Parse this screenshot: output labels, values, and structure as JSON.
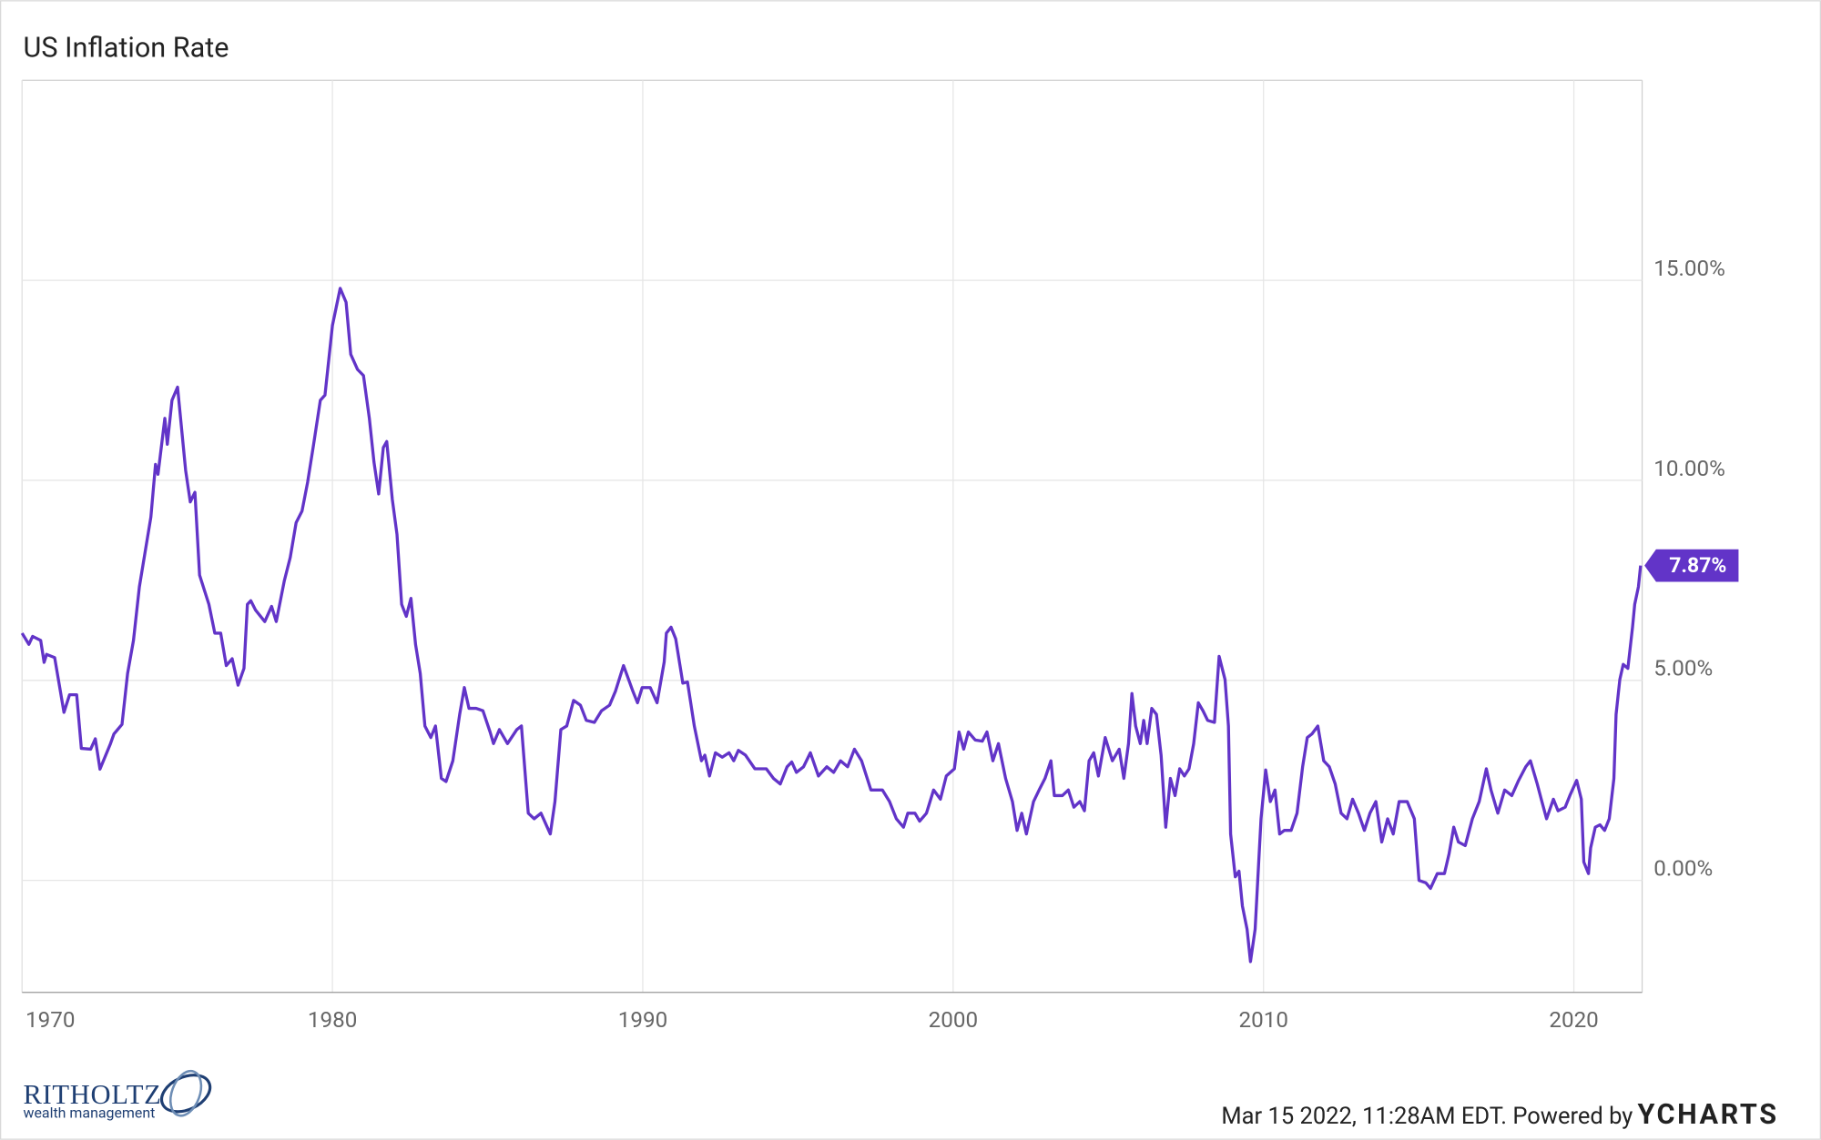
{
  "chart_data": {
    "type": "line",
    "title": "US Inflation Rate",
    "x": [
      1970.0,
      1970.22,
      1970.34,
      1970.6,
      1970.71,
      1970.79,
      1971.05,
      1971.35,
      1971.53,
      1971.76,
      1971.91,
      1972.21,
      1972.36,
      1972.51,
      1972.84,
      1972.96,
      1973.22,
      1973.4,
      1973.59,
      1973.78,
      1974.15,
      1974.3,
      1974.38,
      1974.6,
      1974.68,
      1974.83,
      1975.01,
      1975.27,
      1975.42,
      1975.57,
      1975.72,
      1976.02,
      1976.21,
      1976.4,
      1976.58,
      1976.77,
      1976.96,
      1977.15,
      1977.26,
      1977.37,
      1977.52,
      1977.82,
      1978.04,
      1978.19,
      1978.45,
      1978.64,
      1978.83,
      1979.02,
      1979.2,
      1979.39,
      1979.61,
      1979.76,
      1980.0,
      1980.25,
      1980.44,
      1980.59,
      1980.81,
      1981.0,
      1981.19,
      1981.34,
      1981.49,
      1981.64,
      1981.75,
      1981.93,
      1982.08,
      1982.23,
      1982.38,
      1982.53,
      1982.68,
      1982.83,
      1982.98,
      1983.17,
      1983.32,
      1983.51,
      1983.66,
      1983.88,
      1984.1,
      1984.25,
      1984.4,
      1984.63,
      1984.85,
      1985.08,
      1985.19,
      1985.38,
      1985.64,
      1985.94,
      1986.09,
      1986.31,
      1986.5,
      1986.72,
      1987.02,
      1987.17,
      1987.36,
      1987.55,
      1987.77,
      1987.99,
      1988.18,
      1988.44,
      1988.67,
      1988.93,
      1989.12,
      1989.38,
      1989.68,
      1989.83,
      1989.98,
      1990.24,
      1990.46,
      1990.69,
      1990.76,
      1990.91,
      1991.06,
      1991.29,
      1991.44,
      1991.66,
      1991.89,
      1992.0,
      1992.15,
      1992.34,
      1992.56,
      1992.78,
      1992.93,
      1993.08,
      1993.31,
      1993.61,
      1993.98,
      1994.21,
      1994.43,
      1994.65,
      1994.8,
      1994.95,
      1995.18,
      1995.4,
      1995.66,
      1995.93,
      1996.15,
      1996.37,
      1996.6,
      1996.82,
      1997.05,
      1997.35,
      1997.72,
      1997.95,
      1998.17,
      1998.4,
      1998.54,
      1998.77,
      1998.92,
      1999.14,
      1999.37,
      1999.59,
      1999.78,
      2000.04,
      2000.19,
      2000.34,
      2000.49,
      2000.71,
      2000.94,
      2001.09,
      2001.28,
      2001.46,
      2001.69,
      2001.91,
      2002.06,
      2002.21,
      2002.36,
      2002.59,
      2002.77,
      2002.96,
      2003.15,
      2003.26,
      2003.52,
      2003.71,
      2003.89,
      2004.08,
      2004.23,
      2004.38,
      2004.53,
      2004.68,
      2004.9,
      2005.13,
      2005.35,
      2005.5,
      2005.65,
      2005.76,
      2005.88,
      2006.03,
      2006.14,
      2006.25,
      2006.4,
      2006.55,
      2006.7,
      2006.85,
      2007.0,
      2007.15,
      2007.3,
      2007.45,
      2007.6,
      2007.75,
      2007.9,
      2008.05,
      2008.2,
      2008.42,
      2008.57,
      2008.76,
      2008.87,
      2008.94,
      2009.09,
      2009.21,
      2009.32,
      2009.47,
      2009.58,
      2009.73,
      2009.84,
      2009.92,
      2010.07,
      2010.22,
      2010.37,
      2010.52,
      2010.67,
      2010.89,
      2011.08,
      2011.26,
      2011.41,
      2011.56,
      2011.75,
      2011.94,
      2012.12,
      2012.31,
      2012.5,
      2012.69,
      2012.87,
      2013.06,
      2013.25,
      2013.43,
      2013.62,
      2013.81,
      2014.0,
      2014.18,
      2014.37,
      2014.63,
      2014.86,
      2015.01,
      2015.23,
      2015.38,
      2015.6,
      2015.83,
      2015.98,
      2016.13,
      2016.28,
      2016.5,
      2016.73,
      2016.95,
      2017.18,
      2017.33,
      2017.55,
      2017.77,
      2018.0,
      2018.22,
      2018.45,
      2018.6,
      2018.82,
      2018.97,
      2019.12,
      2019.34,
      2019.49,
      2019.72,
      2019.87,
      2020.09,
      2020.24,
      2020.32,
      2020.47,
      2020.54,
      2020.69,
      2020.84,
      2020.99,
      2021.14,
      2021.29,
      2021.36,
      2021.48,
      2021.59,
      2021.74,
      2021.89,
      2021.96,
      2022.08,
      2022.15
    ],
    "series": [
      {
        "name": "US Inflation Rate",
        "color": "#6234c8",
        "values": [
          6.18,
          5.9,
          6.1,
          6.0,
          5.45,
          5.65,
          5.57,
          4.2,
          4.64,
          4.64,
          3.3,
          3.28,
          3.54,
          2.78,
          3.4,
          3.66,
          3.9,
          5.17,
          6.0,
          7.34,
          9.08,
          10.4,
          10.15,
          11.55,
          10.9,
          12.0,
          12.33,
          10.25,
          9.46,
          9.7,
          7.63,
          6.9,
          6.18,
          6.18,
          5.37,
          5.54,
          4.88,
          5.3,
          6.9,
          6.99,
          6.76,
          6.47,
          6.85,
          6.47,
          7.49,
          8.07,
          8.94,
          9.23,
          9.95,
          10.88,
          12.0,
          12.13,
          13.87,
          14.8,
          14.45,
          13.15,
          12.77,
          12.62,
          11.55,
          10.45,
          9.66,
          10.82,
          10.97,
          9.52,
          8.65,
          6.9,
          6.6,
          7.05,
          5.89,
          5.17,
          3.86,
          3.57,
          3.86,
          2.55,
          2.47,
          2.99,
          4.15,
          4.82,
          4.3,
          4.3,
          4.24,
          3.71,
          3.42,
          3.77,
          3.42,
          3.77,
          3.86,
          1.68,
          1.54,
          1.68,
          1.16,
          1.97,
          3.77,
          3.86,
          4.5,
          4.38,
          4.0,
          3.95,
          4.24,
          4.38,
          4.73,
          5.37,
          4.73,
          4.44,
          4.82,
          4.82,
          4.44,
          5.46,
          6.18,
          6.33,
          6.04,
          4.93,
          4.96,
          3.86,
          2.99,
          3.13,
          2.61,
          3.19,
          3.08,
          3.19,
          2.99,
          3.25,
          3.13,
          2.79,
          2.79,
          2.55,
          2.41,
          2.84,
          2.96,
          2.7,
          2.84,
          3.19,
          2.61,
          2.84,
          2.7,
          2.99,
          2.84,
          3.28,
          2.99,
          2.26,
          2.26,
          1.97,
          1.54,
          1.33,
          1.68,
          1.68,
          1.48,
          1.68,
          2.26,
          2.03,
          2.61,
          2.79,
          3.71,
          3.28,
          3.71,
          3.51,
          3.48,
          3.71,
          2.99,
          3.42,
          2.55,
          1.97,
          1.25,
          1.68,
          1.16,
          1.97,
          2.26,
          2.55,
          2.99,
          2.12,
          2.12,
          2.26,
          1.83,
          1.97,
          1.74,
          2.99,
          3.19,
          2.61,
          3.57,
          2.99,
          3.28,
          2.55,
          3.42,
          4.67,
          3.86,
          3.42,
          4.0,
          3.42,
          4.3,
          4.15,
          3.13,
          1.33,
          2.55,
          2.12,
          2.79,
          2.61,
          2.79,
          3.42,
          4.44,
          4.24,
          4.0,
          3.95,
          5.6,
          5.02,
          3.86,
          1.16,
          0.09,
          0.23,
          -0.64,
          -1.22,
          -2.03,
          -1.22,
          0.38,
          1.54,
          2.76,
          1.97,
          2.26,
          1.16,
          1.25,
          1.25,
          1.68,
          2.84,
          3.57,
          3.66,
          3.86,
          2.99,
          2.84,
          2.41,
          1.68,
          1.54,
          2.03,
          1.68,
          1.25,
          1.68,
          1.97,
          0.96,
          1.54,
          1.16,
          1.97,
          1.97,
          1.54,
          0.0,
          -0.06,
          -0.2,
          0.17,
          0.17,
          0.67,
          1.33,
          0.96,
          0.87,
          1.54,
          1.97,
          2.79,
          2.26,
          1.68,
          2.26,
          2.12,
          2.5,
          2.84,
          2.99,
          2.41,
          1.97,
          1.54,
          2.03,
          1.74,
          1.83,
          2.12,
          2.5,
          2.03,
          0.46,
          0.17,
          0.81,
          1.33,
          1.39,
          1.25,
          1.54,
          2.55,
          4.15,
          5.02,
          5.4,
          5.3,
          6.33,
          6.9,
          7.34,
          7.87
        ]
      }
    ],
    "last_value": {
      "value": 7.87,
      "label": "7.87%"
    },
    "xlim": [
      1970,
      2022.2
    ],
    "xticks": [
      1970,
      1980,
      1990,
      2000,
      2010,
      2020
    ],
    "ylim": [
      -2.8,
      20
    ],
    "yticks": [
      {
        "value": 0,
        "label": "0.00%"
      },
      {
        "value": 5,
        "label": "5.00%"
      },
      {
        "value": 10,
        "label": "10.00%"
      },
      {
        "value": 15,
        "label": "15.00%"
      }
    ],
    "grid": true
  },
  "footer": {
    "brand": "RITHOLTZ",
    "brand_sub": "wealth management",
    "timestamp": "Mar 15 2022, 11:28AM EDT. Powered by",
    "provider": "YCHARTS"
  }
}
